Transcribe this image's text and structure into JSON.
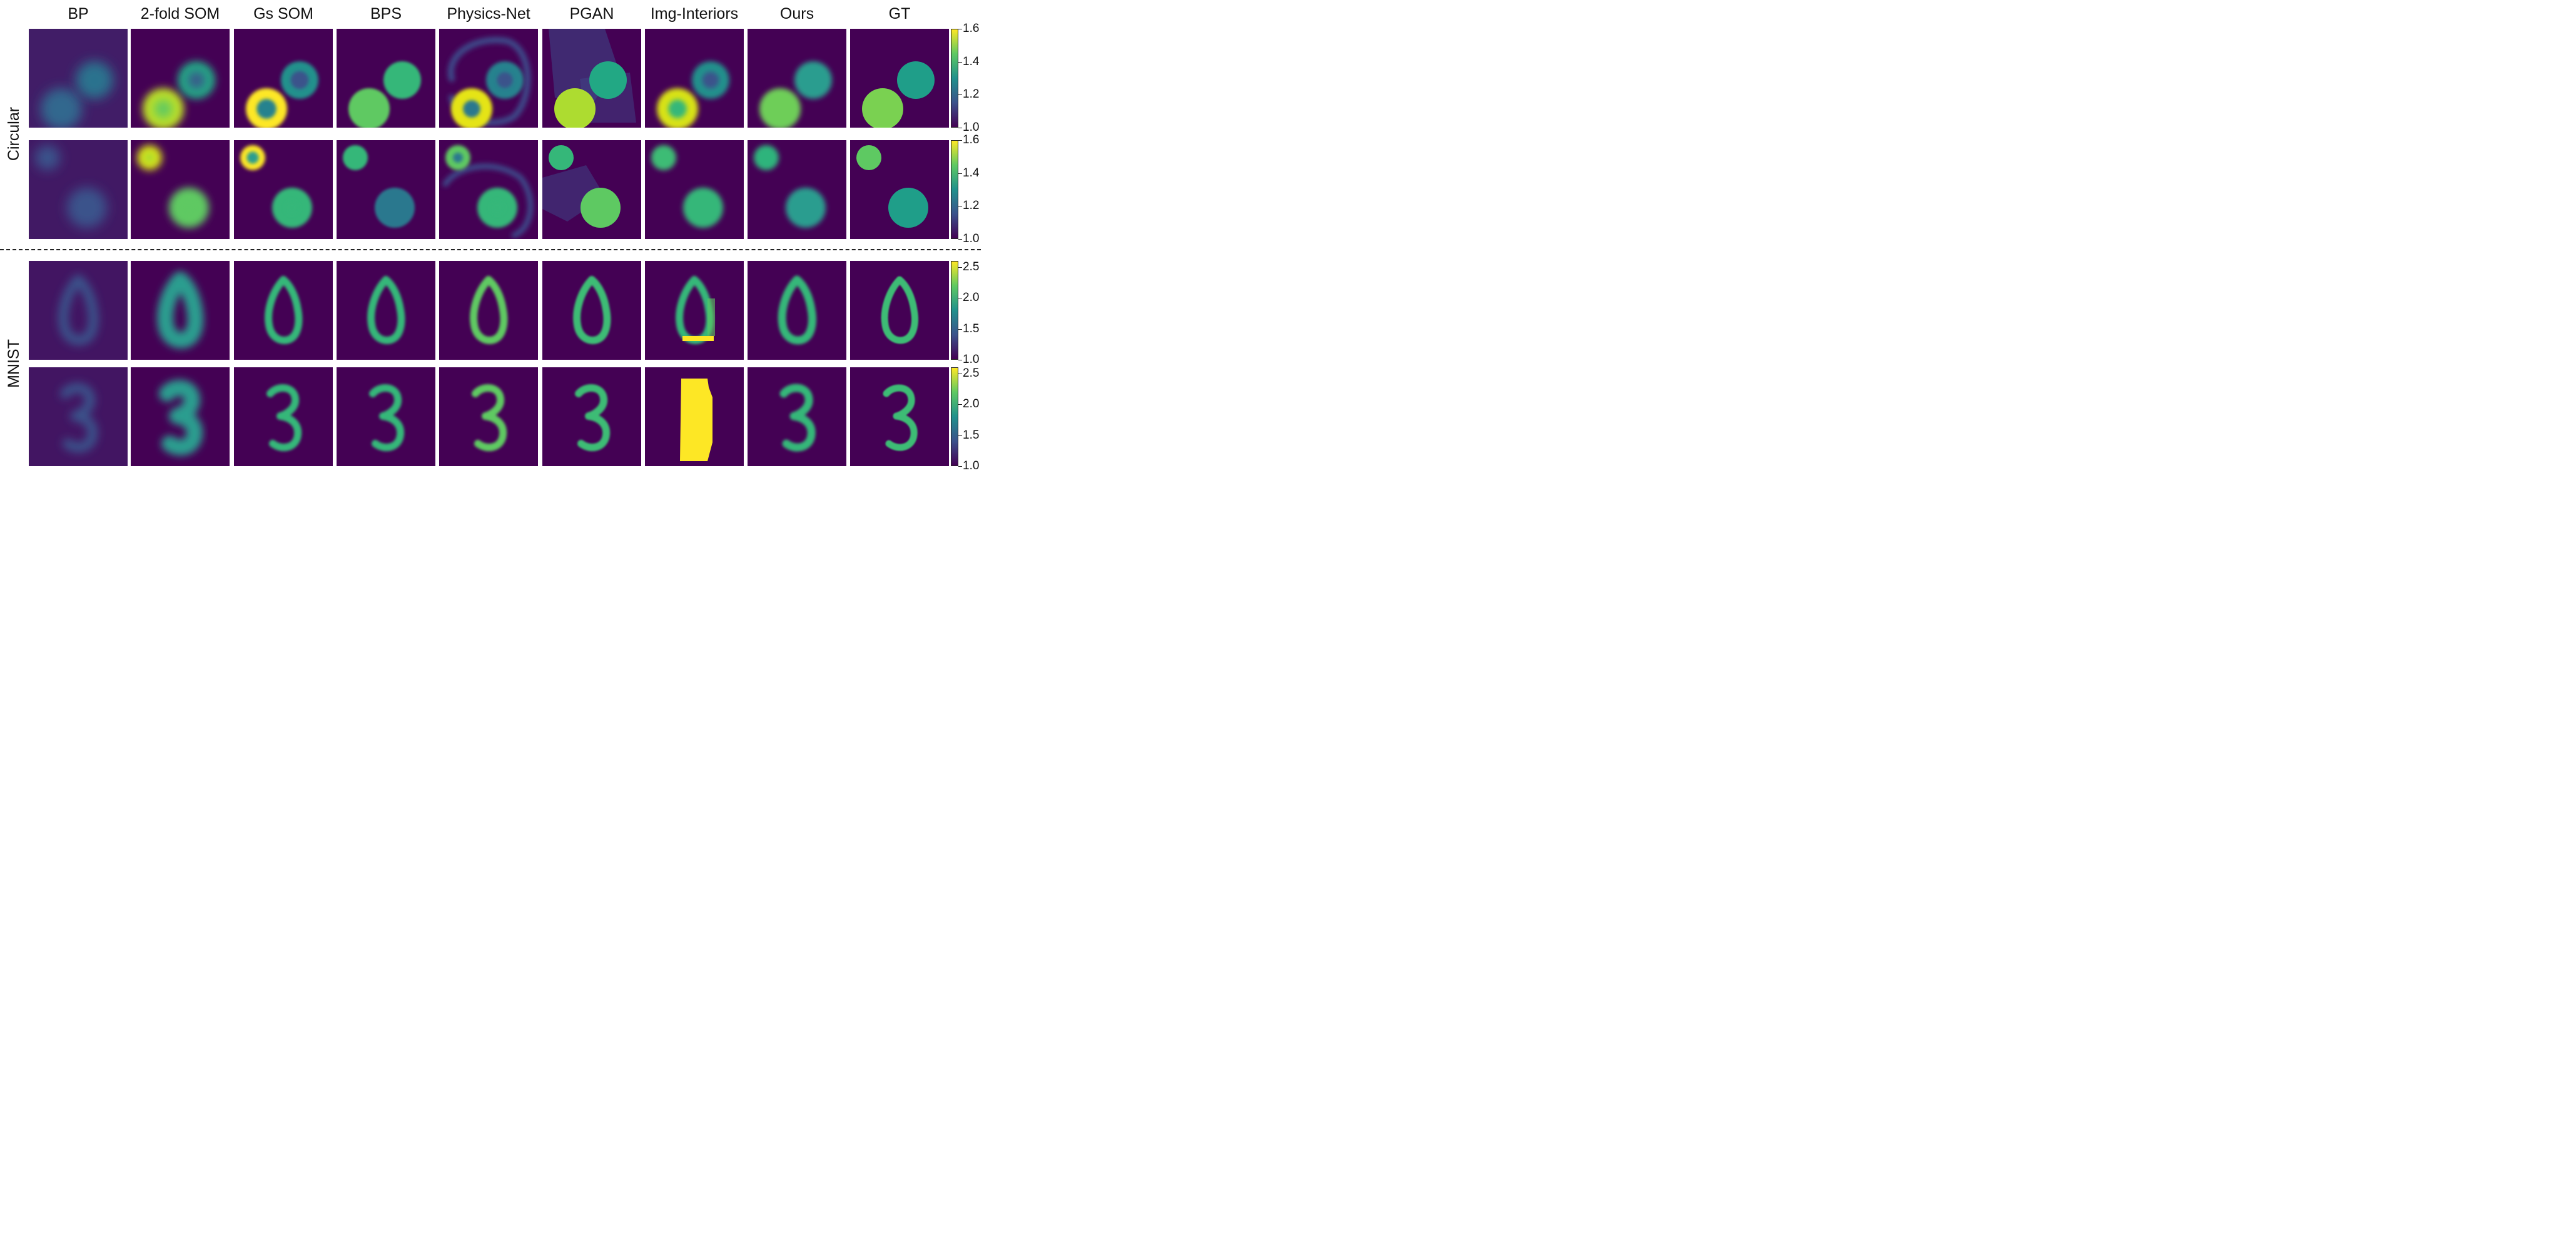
{
  "columns": [
    "BP",
    "2-fold SOM",
    "Gs SOM",
    "BPS",
    "Physics-Net",
    "PGAN",
    "Img-Interiors",
    "Ours",
    "GT"
  ],
  "groups": [
    {
      "label": "Circular",
      "colorbar": {
        "min": 1.0,
        "max": 1.6,
        "ticks": [
          "1.6",
          "1.4",
          "1.2",
          "1.0"
        ]
      }
    },
    {
      "label": "MNIST",
      "colorbar": {
        "min": 1.0,
        "max": 2.6,
        "ticks": [
          "2.5",
          "2.0",
          "1.5",
          "1.0"
        ]
      }
    }
  ],
  "colormap": [
    "#440154",
    "#3b528b",
    "#21918c",
    "#5ec962",
    "#fde725"
  ],
  "rows": [
    {
      "group": "Circular",
      "sample": "two-circles-a"
    },
    {
      "group": "Circular",
      "sample": "two-circles-b"
    },
    {
      "group": "MNIST",
      "sample": "digit-0"
    },
    {
      "group": "MNIST",
      "sample": "digit-3"
    }
  ]
}
